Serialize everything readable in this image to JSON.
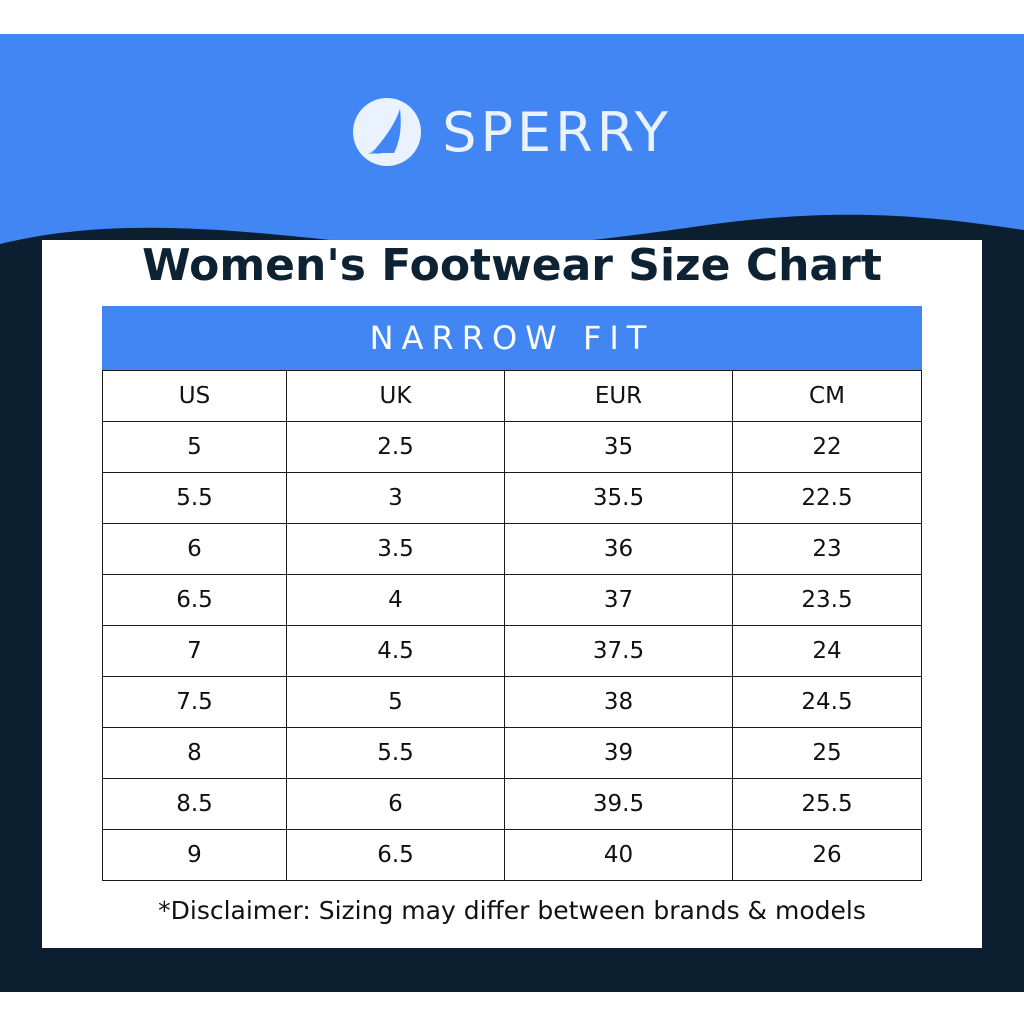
{
  "brand": {
    "name": "SPERRY",
    "logo_icon": "sailboat-sail-icon"
  },
  "colors": {
    "header_blue": "#4286f4",
    "frame_navy": "#0b1f30",
    "fit_bar_blue": "#4286f4"
  },
  "chart": {
    "title": "Women's Footwear Size Chart",
    "fit": "NARROW FIT",
    "columns": [
      "US",
      "UK",
      "EUR",
      "CM"
    ],
    "rows": [
      [
        "5",
        "2.5",
        "35",
        "22"
      ],
      [
        "5.5",
        "3",
        "35.5",
        "22.5"
      ],
      [
        "6",
        "3.5",
        "36",
        "23"
      ],
      [
        "6.5",
        "4",
        "37",
        "23.5"
      ],
      [
        "7",
        "4.5",
        "37.5",
        "24"
      ],
      [
        "7.5",
        "5",
        "38",
        "24.5"
      ],
      [
        "8",
        "5.5",
        "39",
        "25"
      ],
      [
        "8.5",
        "6",
        "39.5",
        "25.5"
      ],
      [
        "9",
        "6.5",
        "40",
        "26"
      ]
    ],
    "disclaimer": "*Disclaimer: Sizing may differ between brands & models"
  }
}
